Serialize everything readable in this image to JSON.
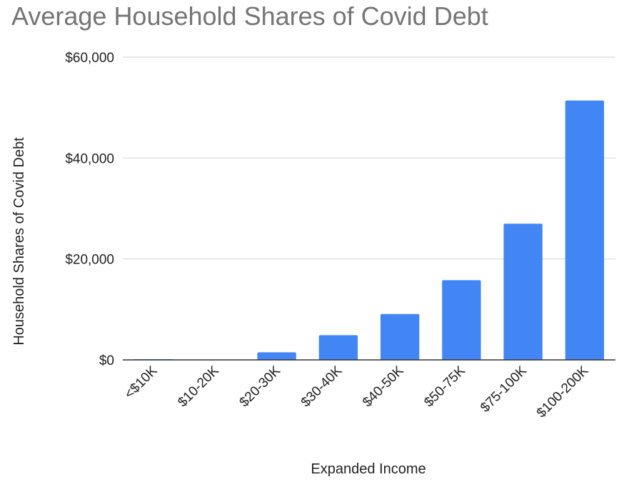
{
  "chart_data": {
    "type": "bar",
    "title": "Average Household Shares of Covid Debt",
    "xlabel": "Expanded Income",
    "ylabel": "Household Shares of Covid Debt",
    "categories": [
      "<$10K",
      "$10-20K",
      "$20-30K",
      "$30-40K",
      "$40-50K",
      "$50-75K",
      "$75-100K",
      "$100-200K"
    ],
    "series": [
      {
        "values": [
          150,
          50,
          1500,
          4900,
          9100,
          15800,
          27000,
          51400
        ]
      }
    ],
    "ylim": [
      0,
      60000
    ],
    "yticks": [
      {
        "value": 0,
        "label": "$0"
      },
      {
        "value": 20000,
        "label": "$20,000"
      },
      {
        "value": 40000,
        "label": "$40,000"
      },
      {
        "value": 60000,
        "label": "$60,000"
      }
    ],
    "grid": true,
    "legend": "none",
    "colors": {
      "bar": "#4285f4",
      "grid": "#d9d9d9",
      "baseline": "#333333"
    }
  }
}
